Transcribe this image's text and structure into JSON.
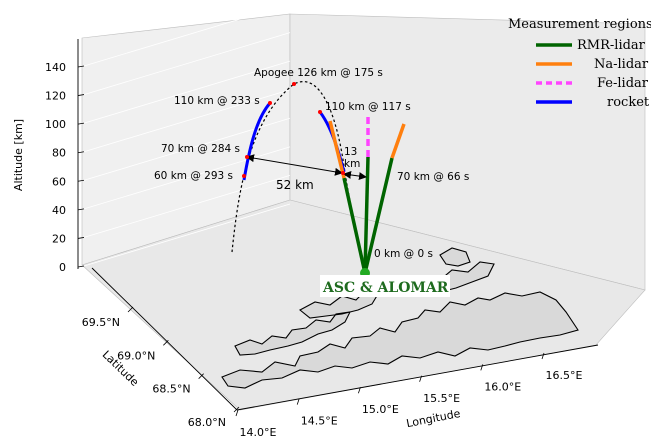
{
  "chart_data": {
    "type": "3d-line",
    "title": "",
    "xlabel": "Longitude",
    "ylabel": "Latitude",
    "zlabel": "Altitude [km]",
    "x_ticks": [
      "14.0°E",
      "14.5°E",
      "15.0°E",
      "15.5°E",
      "16.0°E",
      "16.5°E"
    ],
    "y_ticks": [
      "68.0°N",
      "68.5°N",
      "69.0°N",
      "69.5°N"
    ],
    "z_ticks": [
      "0",
      "20",
      "40",
      "60",
      "80",
      "100",
      "120",
      "140"
    ],
    "zlim": [
      0,
      140
    ],
    "legend": {
      "title": "Measurement regions",
      "placement": "top-right",
      "entries": [
        {
          "label": "RMR-lidar",
          "color": "#006400",
          "style": "solid"
        },
        {
          "label": "Na-lidar",
          "color": "#ff7f0e",
          "style": "solid"
        },
        {
          "label": "Fe-lidar",
          "color": "#ff44ff",
          "style": "dashed"
        },
        {
          "label": "rocket",
          "color": "#0000ff",
          "style": "solid"
        }
      ]
    },
    "annotations": [
      {
        "id": "launch",
        "text": "0 km @ 0 s",
        "altitude_km": 0,
        "time_s": 0
      },
      {
        "id": "up70",
        "text": "70 km @ 66 s",
        "altitude_km": 70,
        "time_s": 66
      },
      {
        "id": "up110",
        "text": "110 km @ 117 s",
        "altitude_km": 110,
        "time_s": 117
      },
      {
        "id": "apogee",
        "text": "Apogee 126 km @ 175 s",
        "altitude_km": 126,
        "time_s": 175
      },
      {
        "id": "down110",
        "text": "110 km @ 233 s",
        "altitude_km": 110,
        "time_s": 233
      },
      {
        "id": "down70",
        "text": "70 km @ 284 s",
        "altitude_km": 70,
        "time_s": 284
      },
      {
        "id": "down60",
        "text": "60 km @ 293 s",
        "altitude_km": 60,
        "time_s": 293
      }
    ],
    "distance_labels": [
      {
        "text": "52 km"
      },
      {
        "text_line1": "13",
        "text_line2": "km"
      }
    ],
    "site_label": "ASC & ALOMAR",
    "site_color": "#1e6b1e",
    "rocket_color": "#0000ff",
    "trajectory_color": "#000000",
    "marker_color": "#ff0000",
    "land_fill": "#d9d9d9"
  }
}
